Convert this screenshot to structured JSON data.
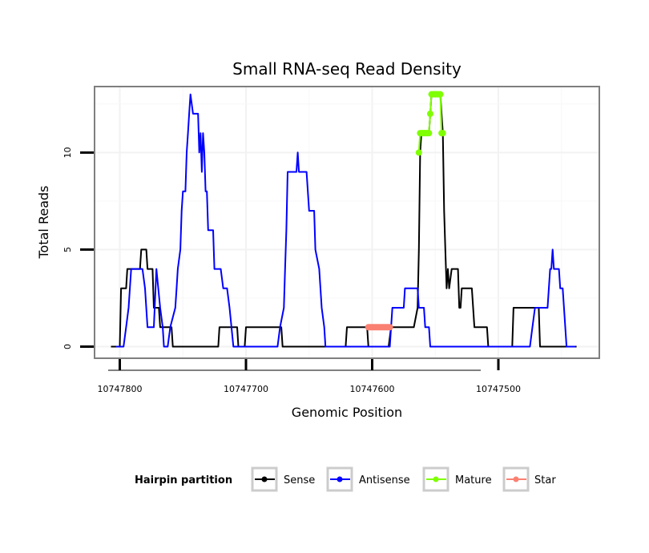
{
  "chart_data": {
    "type": "line",
    "title": "Small RNA-seq Read Density",
    "xlabel": "Genomic Position",
    "ylabel": "Total Reads",
    "xlim": [
      10747820,
      10747420
    ],
    "ylim": [
      -0.6,
      13.4
    ],
    "x_reversed": true,
    "x_ticks": [
      10747800,
      10747700,
      10747600,
      10747500
    ],
    "x_tick_labels": [
      "10747800",
      "10747700",
      "10747600",
      "10747500"
    ],
    "y_ticks": [
      0,
      5,
      10
    ],
    "y_tick_labels": [
      "0",
      "5",
      "10"
    ],
    "grid": true,
    "legend": {
      "title": "Hairpin partition",
      "position": "bottom",
      "entries": [
        {
          "label": "Sense",
          "color": "#000000"
        },
        {
          "label": "Antisense",
          "color": "#0000ff"
        },
        {
          "label": "Mature",
          "color": "#7fff00"
        },
        {
          "label": "Star",
          "color": "#fa8072"
        }
      ]
    },
    "series": [
      {
        "name": "Sense",
        "color": "#000000",
        "style": "line",
        "points": [
          [
            10747807,
            0
          ],
          [
            10747800,
            0
          ],
          [
            10747799,
            3
          ],
          [
            10747795,
            3
          ],
          [
            10747794,
            4
          ],
          [
            10747784,
            4
          ],
          [
            10747783,
            5
          ],
          [
            10747779,
            5
          ],
          [
            10747778,
            4
          ],
          [
            10747774,
            4
          ],
          [
            10747773,
            2
          ],
          [
            10747769,
            2
          ],
          [
            10747768,
            1
          ],
          [
            10747759,
            1
          ],
          [
            10747758,
            0
          ],
          [
            10747722,
            0
          ],
          [
            10747721,
            1
          ],
          [
            10747707,
            1
          ],
          [
            10747706,
            0
          ],
          [
            10747701,
            0
          ],
          [
            10747700,
            1
          ],
          [
            10747672,
            1
          ],
          [
            10747671,
            0
          ],
          [
            10747621,
            0
          ],
          [
            10747620,
            1
          ],
          [
            10747604,
            1
          ],
          [
            10747603,
            0
          ],
          [
            10747600,
            0
          ],
          [
            10747598,
            0
          ],
          [
            10747587,
            0
          ],
          [
            10747585,
            1
          ],
          [
            10747567,
            1
          ],
          [
            10747564,
            2
          ],
          [
            10747563,
            5
          ],
          [
            10747562,
            10
          ],
          [
            10747561,
            11
          ],
          [
            10747555,
            11
          ],
          [
            10747554,
            12
          ],
          [
            10747553,
            13
          ],
          [
            10747546,
            13
          ],
          [
            10747545,
            12
          ],
          [
            10747544,
            11
          ],
          [
            10747543,
            7
          ],
          [
            10747542,
            5
          ],
          [
            10747541,
            3
          ],
          [
            10747540,
            4
          ],
          [
            10747539,
            3
          ],
          [
            10747537,
            4
          ],
          [
            10747532,
            4
          ],
          [
            10747531,
            2
          ],
          [
            10747530,
            2
          ],
          [
            10747529,
            3
          ],
          [
            10747521,
            3
          ],
          [
            10747520,
            2
          ],
          [
            10747519,
            1
          ],
          [
            10747509,
            1
          ],
          [
            10747508,
            0
          ],
          [
            10747489,
            0
          ],
          [
            10747488,
            2
          ],
          [
            10747480,
            2
          ],
          [
            10747479,
            2
          ],
          [
            10747468,
            2
          ],
          [
            10747467,
            0
          ],
          [
            10747438,
            0
          ]
        ]
      },
      {
        "name": "Antisense",
        "color": "#0000ff",
        "style": "line",
        "points": [
          [
            10747803,
            0
          ],
          [
            10747797,
            0
          ],
          [
            10747795,
            1
          ],
          [
            10747793,
            2
          ],
          [
            10747791,
            4
          ],
          [
            10747782,
            4
          ],
          [
            10747780,
            3
          ],
          [
            10747778,
            1
          ],
          [
            10747773,
            1
          ],
          [
            10747771,
            4
          ],
          [
            10747768,
            2
          ],
          [
            10747766,
            1
          ],
          [
            10747765,
            0
          ],
          [
            10747762,
            0
          ],
          [
            10747760,
            1
          ],
          [
            10747756,
            2
          ],
          [
            10747755,
            3
          ],
          [
            10747754,
            4
          ],
          [
            10747752,
            5
          ],
          [
            10747751,
            7
          ],
          [
            10747750,
            8
          ],
          [
            10747748,
            8
          ],
          [
            10747747,
            10
          ],
          [
            10747746,
            11
          ],
          [
            10747745,
            12
          ],
          [
            10747744,
            13
          ],
          [
            10747742,
            12
          ],
          [
            10747738,
            12
          ],
          [
            10747737,
            10
          ],
          [
            10747736,
            11
          ],
          [
            10747735,
            9
          ],
          [
            10747734,
            11
          ],
          [
            10747733,
            10
          ],
          [
            10747732,
            8
          ],
          [
            10747731,
            8
          ],
          [
            10747730,
            6
          ],
          [
            10747726,
            6
          ],
          [
            10747725,
            4
          ],
          [
            10747720,
            4
          ],
          [
            10747718,
            3
          ],
          [
            10747715,
            3
          ],
          [
            10747713,
            2
          ],
          [
            10747710,
            0
          ],
          [
            10747675,
            0
          ],
          [
            10747673,
            1
          ],
          [
            10747670,
            2
          ],
          [
            10747669,
            4
          ],
          [
            10747668,
            6
          ],
          [
            10747667,
            9
          ],
          [
            10747660,
            9
          ],
          [
            10747659,
            10
          ],
          [
            10747658,
            9
          ],
          [
            10747652,
            9
          ],
          [
            10747650,
            7
          ],
          [
            10747646,
            7
          ],
          [
            10747645,
            5
          ],
          [
            10747642,
            4
          ],
          [
            10747640,
            2
          ],
          [
            10747638,
            1
          ],
          [
            10747637,
            0
          ],
          [
            10747586,
            0
          ],
          [
            10747585,
            1
          ],
          [
            10747584,
            2
          ],
          [
            10747575,
            2
          ],
          [
            10747574,
            3
          ],
          [
            10747564,
            3
          ],
          [
            10747563,
            2
          ],
          [
            10747559,
            2
          ],
          [
            10747558,
            1
          ],
          [
            10747555,
            1
          ],
          [
            10747554,
            0
          ],
          [
            10747475,
            0
          ],
          [
            10747473,
            1
          ],
          [
            10747471,
            2
          ],
          [
            10747461,
            2
          ],
          [
            10747459,
            4
          ],
          [
            10747458,
            4
          ],
          [
            10747457,
            5
          ],
          [
            10747456,
            4
          ],
          [
            10747452,
            4
          ],
          [
            10747451,
            3
          ],
          [
            10747449,
            3
          ],
          [
            10747448,
            2
          ],
          [
            10747447,
            1
          ],
          [
            10747446,
            0
          ],
          [
            10747439,
            0
          ]
        ]
      },
      {
        "name": "Mature",
        "color": "#7fff00",
        "style": "points",
        "points": [
          [
            10747563,
            10
          ],
          [
            10747562,
            11
          ],
          [
            10747561,
            11
          ],
          [
            10747560,
            11
          ],
          [
            10747559,
            11
          ],
          [
            10747558,
            11
          ],
          [
            10747557,
            11
          ],
          [
            10747556,
            11
          ],
          [
            10747555,
            11
          ],
          [
            10747554,
            12
          ],
          [
            10747553,
            13
          ],
          [
            10747552,
            13
          ],
          [
            10747551,
            13
          ],
          [
            10747550,
            13
          ],
          [
            10747549,
            13
          ],
          [
            10747548,
            13
          ],
          [
            10747547,
            13
          ],
          [
            10747546,
            13
          ],
          [
            10747545,
            11
          ],
          [
            10747544,
            11
          ]
        ]
      },
      {
        "name": "Star",
        "color": "#fa8072",
        "style": "points",
        "points": [
          [
            10747603,
            1
          ],
          [
            10747602,
            1
          ],
          [
            10747601,
            1
          ],
          [
            10747600,
            1
          ],
          [
            10747599,
            1
          ],
          [
            10747598,
            1
          ],
          [
            10747597,
            1
          ],
          [
            10747596,
            1
          ],
          [
            10747595,
            1
          ],
          [
            10747594,
            1
          ],
          [
            10747593,
            1
          ],
          [
            10747592,
            1
          ],
          [
            10747591,
            1
          ],
          [
            10747590,
            1
          ],
          [
            10747589,
            1
          ],
          [
            10747588,
            1
          ],
          [
            10747587,
            1
          ],
          [
            10747586,
            1
          ]
        ]
      }
    ]
  }
}
